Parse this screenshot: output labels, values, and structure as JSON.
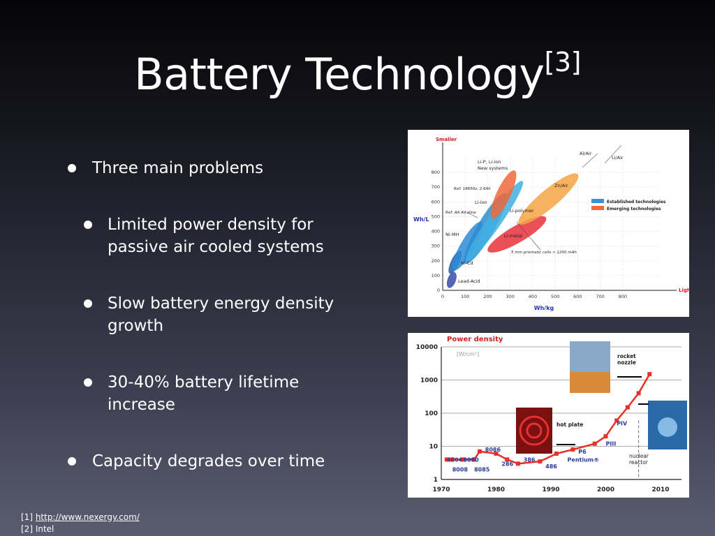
{
  "slide": {
    "title": "Battery Technology",
    "title_sup": "[3]",
    "bullets": [
      {
        "text": "Three main problems"
      },
      {
        "text": "Limited power density for"
      },
      {
        "text": "passive air cooled systems"
      },
      {
        "text": "Slow battery energy density"
      },
      {
        "text": "growth"
      },
      {
        "text": "30-40% battery lifetime"
      },
      {
        "text": "increase"
      },
      {
        "text": "Capacity degrades over time"
      }
    ],
    "footer": {
      "ref1_prefix": "[1] ",
      "ref1_link": "http://www.nexergy.com/",
      "ref2": "[2] Intel"
    }
  },
  "chart_data": [
    {
      "type": "scatter",
      "title": "",
      "xlabel": "Wh/kg",
      "ylabel": "Wh/L",
      "xlim": [
        0,
        900
      ],
      "ylim": [
        0,
        900
      ],
      "x_ticks": [
        "0",
        "100",
        "200",
        "300",
        "400",
        "500",
        "600",
        "700",
        "800"
      ],
      "y_ticks": [
        "0",
        "100",
        "200",
        "300",
        "400",
        "500",
        "600",
        "700",
        "800"
      ],
      "corner_labels": {
        "top": "Smaller",
        "right": "Lighter"
      },
      "legend": [
        {
          "name": "Established technologies",
          "color": "#3b8fd6"
        },
        {
          "name": "Emerging technologies",
          "color": "#ef6a3b"
        }
      ],
      "legend_position": "right",
      "regions": [
        {
          "label": "Lead-Acid",
          "x": 40,
          "y": 70,
          "color": "#3a4aa8"
        },
        {
          "label": "Ni-Cd",
          "x": 55,
          "y": 190,
          "color": "#1f5fa8"
        },
        {
          "label": "Ni-MH",
          "x": 110,
          "y": 300,
          "color": "#2e8bd6"
        },
        {
          "label": "Li-ion",
          "x": 190,
          "y": 420,
          "color": "#2e8bd6"
        },
        {
          "label": "Li-polymer",
          "x": 230,
          "y": 470,
          "color": "#3fb0e0"
        },
        {
          "label": "Li-P, Li-ion New systems",
          "x": 270,
          "y": 650,
          "color": "#ef6a3b"
        },
        {
          "label": "Li-metal",
          "x": 330,
          "y": 380,
          "color": "#e8303a"
        },
        {
          "label": "Zn/Air",
          "x": 470,
          "y": 620,
          "color": "#f5a545"
        }
      ],
      "annotations": [
        "Ref: 18650s; 2.6Ah",
        "Ref: AA Alkaline",
        "5 mm prismatic cells < 1200 mAh",
        "Al/Air",
        "Li/Air"
      ]
    },
    {
      "type": "line",
      "title": "Power density",
      "ylabel": "[W/cm²]",
      "xlabel": "",
      "scale": "log",
      "xlim": [
        1970,
        2010
      ],
      "ylim": [
        1,
        10000
      ],
      "x_ticks": [
        "1970",
        "1980",
        "1990",
        "2000",
        "2010"
      ],
      "y_ticks": [
        "1",
        "10",
        "100",
        "1000",
        "10000"
      ],
      "x": [
        1971,
        1972,
        1974,
        1976,
        1977,
        1980,
        1982,
        1984,
        1988,
        1991,
        1994,
        1998,
        2000,
        2002,
        2004,
        2006,
        2008
      ],
      "values": [
        4,
        4,
        4,
        4,
        7,
        6,
        4,
        3,
        3.5,
        6,
        8,
        12,
        20,
        60,
        150,
        400,
        1500
      ],
      "point_labels": [
        {
          "text": "4004",
          "x": 1971,
          "y": 4
        },
        {
          "text": "8080",
          "x": 1974,
          "y": 4
        },
        {
          "text": "8008",
          "x": 1972,
          "y": 2
        },
        {
          "text": "8085",
          "x": 1976,
          "y": 2
        },
        {
          "text": "8086",
          "x": 1978,
          "y": 8
        },
        {
          "text": "286",
          "x": 1981,
          "y": 3
        },
        {
          "text": "386",
          "x": 1985,
          "y": 4
        },
        {
          "text": "486",
          "x": 1989,
          "y": 2.5
        },
        {
          "text": "P6",
          "x": 1995,
          "y": 7
        },
        {
          "text": "Pentium®",
          "x": 1993,
          "y": 4
        },
        {
          "text": "PIII",
          "x": 2000,
          "y": 12
        },
        {
          "text": "PIV",
          "x": 2002,
          "y": 50
        }
      ],
      "annotations": [
        "rocket nozzle",
        "hot plate",
        "nuclear reactor"
      ]
    }
  ]
}
